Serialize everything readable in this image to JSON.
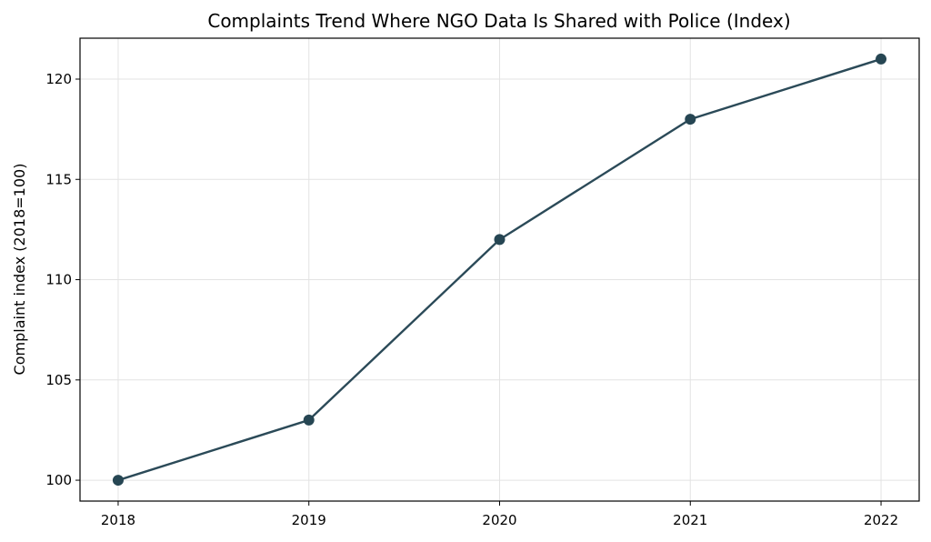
{
  "chart_data": {
    "type": "line",
    "title": "Complaints Trend Where NGO Data Is Shared with Police (Index)",
    "xlabel": "",
    "ylabel": "Complaint index (2018=100)",
    "x": [
      2018,
      2019,
      2020,
      2021,
      2022
    ],
    "x_tick_labels": [
      "2018",
      "2019",
      "2020",
      "2021",
      "2022"
    ],
    "series": [
      {
        "values": [
          100,
          103,
          112,
          118,
          121
        ],
        "color": "#2b4a58",
        "marker": "circle"
      }
    ],
    "y_ticks": [
      100,
      105,
      110,
      115,
      120
    ],
    "y_tick_labels": [
      "100",
      "105",
      "110",
      "115",
      "120"
    ],
    "xlim": [
      2017.8,
      2022.2
    ],
    "ylim": [
      98.96,
      122.04
    ],
    "grid": true,
    "legend": "none"
  }
}
